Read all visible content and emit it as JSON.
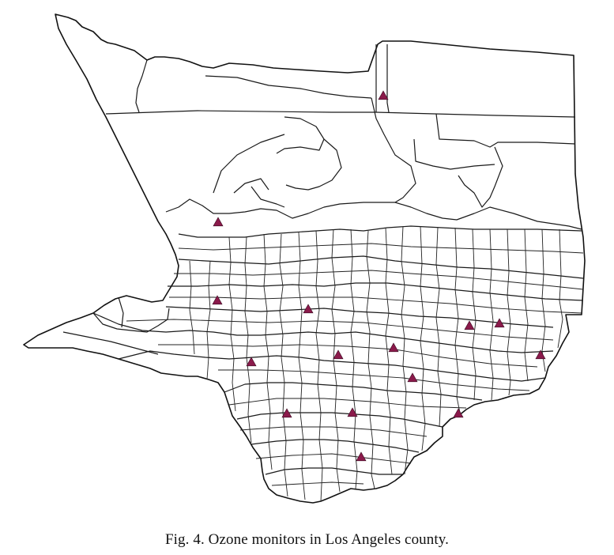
{
  "figure": {
    "caption": "Fig. 4.  Ozone monitors in Los Angeles county."
  },
  "map": {
    "region": "Los Angeles county",
    "marker_icon": "triangle-icon",
    "marker_color": "#8B1A4B",
    "boundary_color": "#1a1a1a",
    "background_color": "#ffffff"
  }
}
